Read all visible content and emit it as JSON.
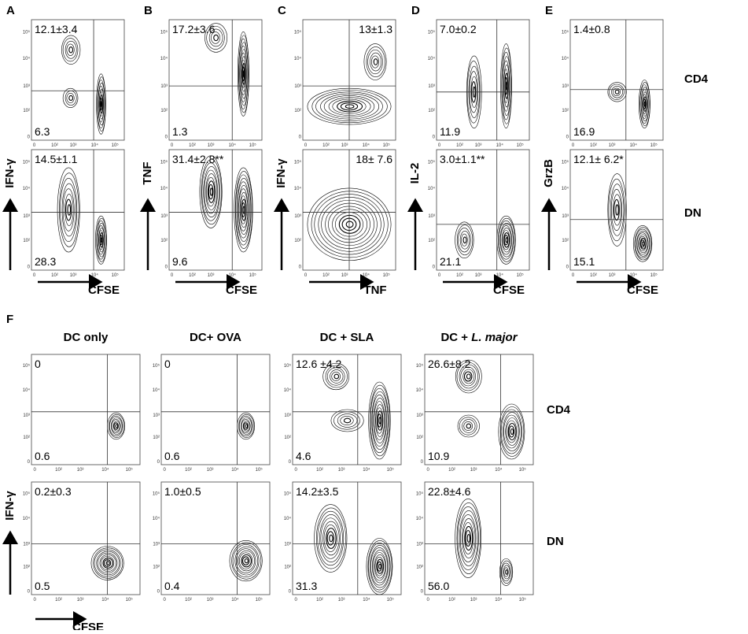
{
  "axis_ticks": [
    "0",
    "10²",
    "10³",
    "10⁴",
    "10⁵"
  ],
  "row_labels": [
    "CD4",
    "DN"
  ],
  "panels": [
    {
      "letter": "A",
      "y_label": "IFN-γ",
      "x_label": "CFSE",
      "plots": [
        {
          "top_left": "12.1±3.4",
          "bottom_left": "6.3"
        },
        {
          "top_left": "14.5±1.1",
          "bottom_left": "28.3"
        }
      ]
    },
    {
      "letter": "B",
      "y_label": "TNF",
      "x_label": "CFSE",
      "plots": [
        {
          "top_left": "17.2±3.6",
          "bottom_left": "1.3"
        },
        {
          "top_left": "31.4±2.8**",
          "bottom_left": "9.6"
        }
      ]
    },
    {
      "letter": "C",
      "y_label": "IFN-γ",
      "x_label": "TNF",
      "plots": [
        {
          "top_right": "13±1.3"
        },
        {
          "top_right": "18± 7.6"
        }
      ]
    },
    {
      "letter": "D",
      "y_label": "IL-2",
      "x_label": "CFSE",
      "plots": [
        {
          "top_left": "7.0±0.2",
          "bottom_left": "11.9"
        },
        {
          "top_left": "3.0±1.1**",
          "bottom_left": "21.1"
        }
      ]
    },
    {
      "letter": "E",
      "y_label": "GrzB",
      "x_label": "CFSE",
      "plots": [
        {
          "top_left": "1.4±0.8",
          "bottom_left": "16.9"
        },
        {
          "top_left": "12.1± 6.2*",
          "bottom_left": "15.1"
        }
      ]
    }
  ],
  "panel_f": {
    "letter": "F",
    "y_label": "IFN-γ",
    "x_label": "CFSE",
    "columns": [
      {
        "title": "DC only",
        "plots": [
          {
            "top_left": "0",
            "bottom_left": "0.6"
          },
          {
            "top_left": "0.2±0.3",
            "bottom_left": "0.5"
          }
        ]
      },
      {
        "title": "DC+ OVA",
        "plots": [
          {
            "top_left": "0",
            "bottom_left": "0.6"
          },
          {
            "top_left": "1.0±0.5",
            "bottom_left": "0.4"
          }
        ]
      },
      {
        "title": "DC + SLA",
        "plots": [
          {
            "top_left": "12.6 ±4.2",
            "bottom_left": "4.6"
          },
          {
            "top_left": "14.2±3.5",
            "bottom_left": "31.3"
          }
        ]
      },
      {
        "title": "DC + ",
        "title_italic": "L. major",
        "plots": [
          {
            "top_left": "26.6±8.2",
            "bottom_left": "10.9"
          },
          {
            "top_left": "22.8±4.6",
            "bottom_left": "56.0"
          }
        ]
      }
    ]
  }
}
